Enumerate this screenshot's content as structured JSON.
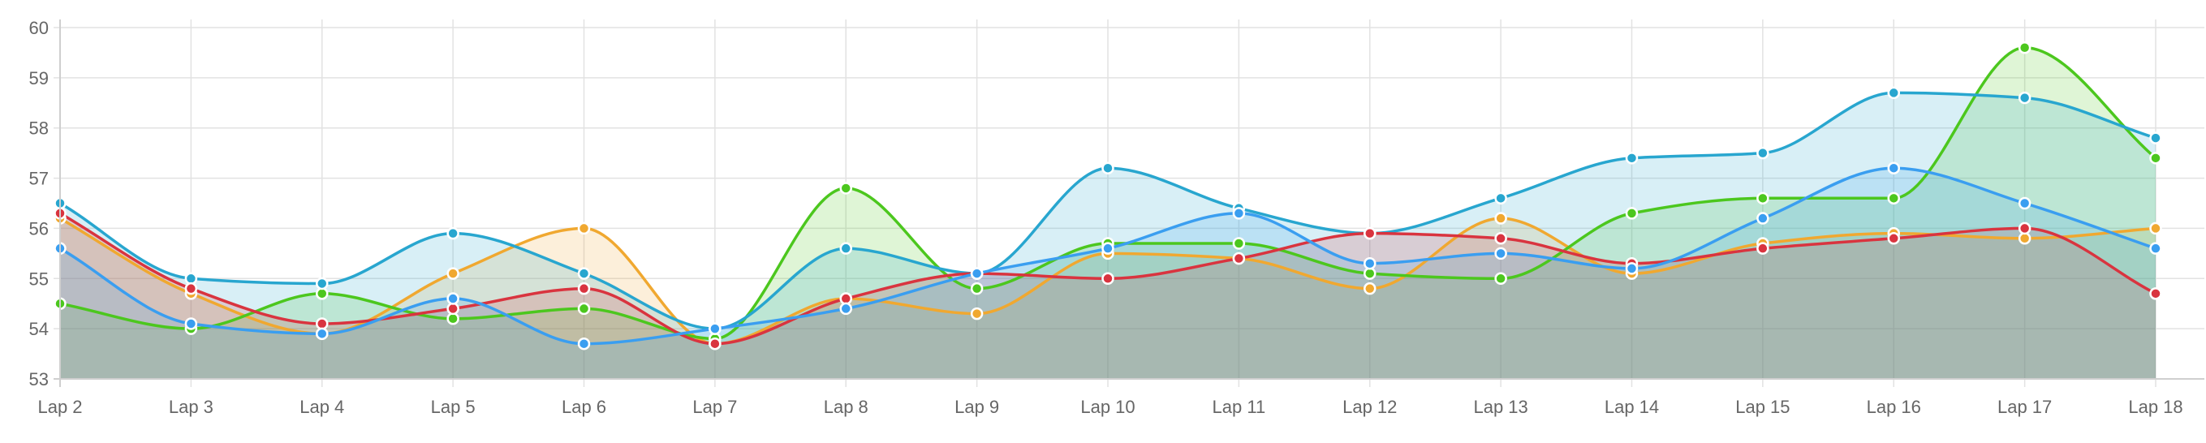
{
  "chart_data": {
    "type": "area",
    "title": "",
    "xlabel": "",
    "ylabel": "",
    "categories": [
      "Lap 2",
      "Lap 3",
      "Lap 4",
      "Lap 5",
      "Lap 6",
      "Lap 7",
      "Lap 8",
      "Lap 9",
      "Lap 10",
      "Lap 11",
      "Lap 12",
      "Lap 13",
      "Lap 14",
      "Lap 15",
      "Lap 16",
      "Lap 17",
      "Lap 18"
    ],
    "ylim": [
      53,
      60
    ],
    "yticks": [
      "53",
      "54",
      "55",
      "56",
      "57",
      "58",
      "59",
      "60"
    ],
    "grid": true,
    "legend": "none",
    "series": [
      {
        "color": "#f0a830",
        "fill": "rgba(240,168,48,0.18)",
        "values": [
          56.2,
          54.7,
          53.9,
          55.1,
          56.0,
          53.7,
          54.6,
          54.3,
          55.5,
          55.4,
          54.8,
          56.2,
          55.1,
          55.7,
          55.9,
          55.8,
          56.0
        ]
      },
      {
        "color": "#4cc71e",
        "fill": "rgba(76,199,30,0.18)",
        "values": [
          54.5,
          54.0,
          54.7,
          54.2,
          54.4,
          53.8,
          56.8,
          54.8,
          55.7,
          55.7,
          55.1,
          55.0,
          56.3,
          56.6,
          56.6,
          59.6,
          57.4
        ]
      },
      {
        "color": "#28a6cf",
        "fill": "rgba(40,166,207,0.18)",
        "values": [
          56.5,
          55.0,
          54.9,
          55.9,
          55.1,
          54.0,
          55.6,
          55.1,
          57.2,
          56.4,
          55.9,
          56.6,
          57.4,
          57.5,
          58.7,
          58.6,
          57.8
        ]
      },
      {
        "color": "#d9343f",
        "fill": "rgba(217,52,63,0.18)",
        "values": [
          56.3,
          54.8,
          54.1,
          54.4,
          54.8,
          53.7,
          54.6,
          55.1,
          55.0,
          55.4,
          55.9,
          55.8,
          55.3,
          55.6,
          55.8,
          56.0,
          54.7
        ]
      },
      {
        "color": "#3a9ef0",
        "fill": "rgba(58,158,240,0.18)",
        "values": [
          55.6,
          54.1,
          53.9,
          54.6,
          53.7,
          54.0,
          54.4,
          55.1,
          55.6,
          56.3,
          55.3,
          55.5,
          55.2,
          56.2,
          57.2,
          56.5,
          55.6
        ]
      }
    ]
  }
}
